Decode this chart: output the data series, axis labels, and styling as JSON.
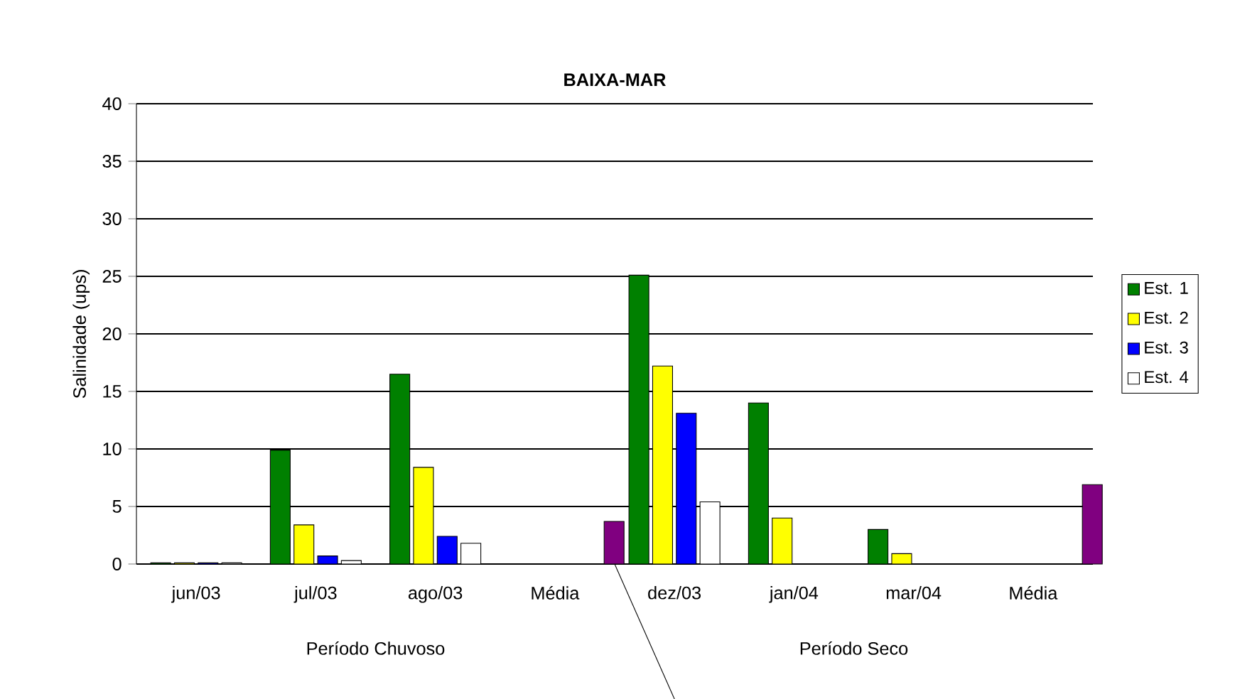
{
  "chart_data": {
    "type": "bar",
    "title": "BAIXA-MAR",
    "ylabel": "Salinidade (ups)",
    "categories": [
      "jun/03",
      "jul/03",
      "ago/03",
      "Média",
      "dez/03",
      "jan/04",
      "mar/04",
      "Média"
    ],
    "series": [
      {
        "name": "Est. 1",
        "color": "#008000",
        "values": [
          0.1,
          9.9,
          16.5,
          null,
          25.1,
          14.0,
          3.0,
          null
        ]
      },
      {
        "name": "Est. 2",
        "color": "#ffff00",
        "values": [
          0.1,
          3.4,
          8.4,
          null,
          17.2,
          4.0,
          0.9,
          null
        ]
      },
      {
        "name": "Est. 3",
        "color": "#0000ff",
        "values": [
          0.1,
          0.7,
          2.4,
          null,
          13.1,
          null,
          null,
          null
        ]
      },
      {
        "name": "Est. 4",
        "color": "#ffffff",
        "values": [
          0.1,
          0.3,
          1.8,
          null,
          5.4,
          null,
          null,
          null
        ]
      },
      {
        "color": "#800080",
        "values": [
          null,
          null,
          null,
          3.7,
          null,
          null,
          null,
          6.9
        ]
      }
    ],
    "ylim": [
      0,
      40
    ],
    "yticks": [
      0,
      5,
      10,
      15,
      20,
      25,
      30,
      35,
      40
    ],
    "grid": "y",
    "legend": "right",
    "annotations": [
      "Período Chuvoso",
      "Período Seco"
    ]
  }
}
